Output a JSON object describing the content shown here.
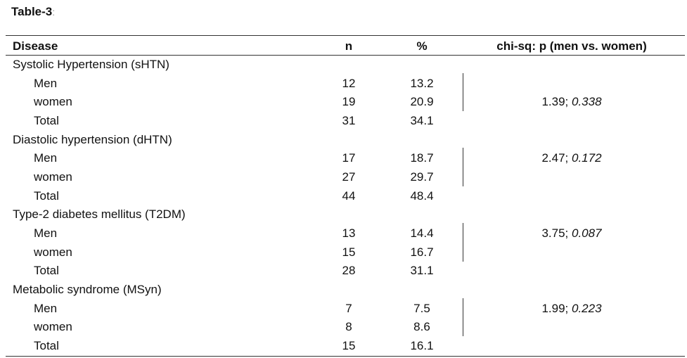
{
  "title": "Table-3",
  "title_suffix": ":",
  "header": [
    "Disease",
    "n",
    "%",
    "chi-sq: p (men vs. women)"
  ],
  "groups": [
    {
      "name": "Systolic Hypertension (sHTN)",
      "rows": [
        [
          "Men",
          "12",
          "13.2"
        ],
        [
          "women",
          "19",
          "20.9"
        ],
        [
          "Total",
          "31",
          "34.1"
        ]
      ],
      "chi_stat": "1.39;",
      "p_value": "0.338"
    },
    {
      "name": "Diastolic hypertension (dHTN)",
      "rows": [
        [
          "Men",
          "17",
          "18.7"
        ],
        [
          "women",
          "27",
          "29.7"
        ],
        [
          "Total",
          "44",
          "48.4"
        ]
      ],
      "chi_stat": "2.47;",
      "p_value": "0.172"
    },
    {
      "name": "Type-2 diabetes mellitus (T2DM)",
      "rows": [
        [
          "Men",
          "13",
          "14.4"
        ],
        [
          "women",
          "15",
          "16.7"
        ],
        [
          "Total",
          "28",
          "31.1"
        ]
      ],
      "chi_stat": "3.75;",
      "p_value": "0.087"
    },
    {
      "name": "Metabolic syndrome (MSyn)",
      "rows": [
        [
          "Men",
          "7",
          "7.5"
        ],
        [
          "women",
          "8",
          "8.6"
        ],
        [
          "Total",
          "15",
          "16.1"
        ]
      ],
      "chi_stat": "1.99;",
      "p_value": "0.223"
    }
  ]
}
